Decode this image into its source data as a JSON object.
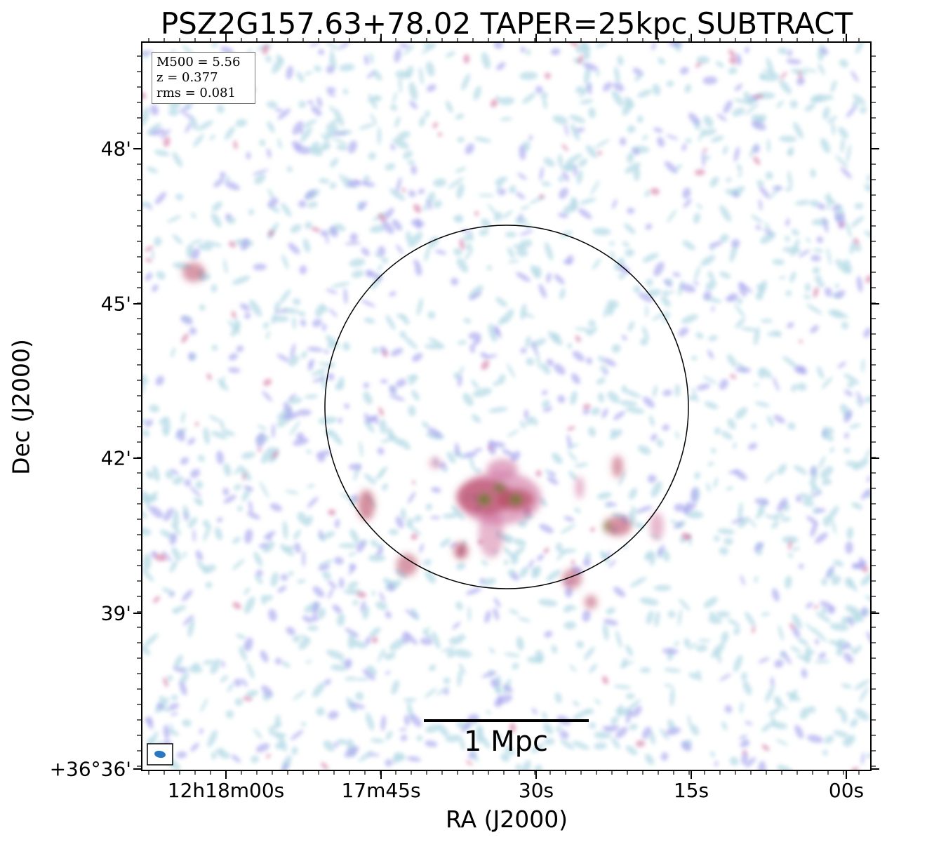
{
  "title": "PSZ2G157.63+78.02 TAPER=25kpc SUBTRACT",
  "axes": {
    "xlabel": "RA (J2000)",
    "ylabel": "Dec (J2000)",
    "xticks": [
      "12h18m00s",
      "17m45s",
      "30s",
      "15s",
      "00s"
    ],
    "yticks": [
      "48'",
      "45'",
      "42'",
      "39'",
      "+36°36'"
    ]
  },
  "info": {
    "m500": "M500 = 5.56",
    "z": "z = 0.377",
    "rms": "rms = 0.081"
  },
  "scalebar": {
    "label": "1 Mpc"
  },
  "colors": {
    "noise_light": "#b6dbe6",
    "noise_blue": "#a7a6ee",
    "emission_pink": "#cf6f9e",
    "emission_red": "#b84561",
    "core_olive": "#6f7a34",
    "beam": "#2a78c2",
    "circle": "#000000"
  }
}
